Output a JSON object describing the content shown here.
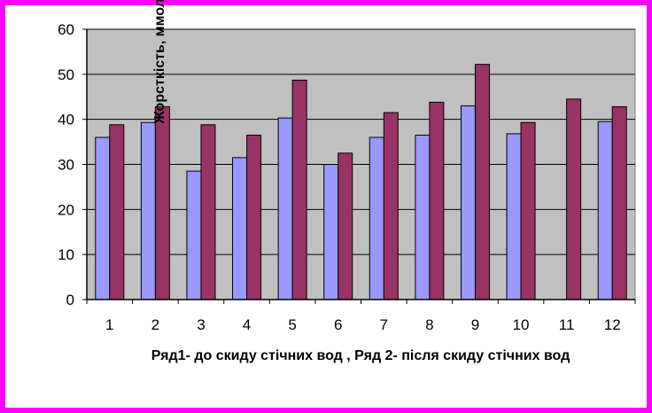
{
  "chart_data": {
    "type": "bar",
    "categories": [
      "1",
      "2",
      "3",
      "4",
      "5",
      "6",
      "7",
      "8",
      "9",
      "10",
      "11",
      "12"
    ],
    "series": [
      {
        "values": [
          36,
          39.3,
          28.5,
          31.5,
          40.3,
          30,
          36,
          36.5,
          43,
          36.8,
          0,
          39.5
        ],
        "color": "#9999ff"
      },
      {
        "values": [
          38.8,
          42.8,
          38.8,
          36.5,
          48.7,
          32.5,
          41.5,
          43.8,
          52.2,
          39.3,
          44.5,
          42.8
        ],
        "color": "#993366"
      }
    ],
    "ylim": [
      0,
      60
    ],
    "yticks": [
      0,
      10,
      20,
      30,
      40,
      50,
      60
    ],
    "xlabel": "Ряд1- до скиду стічних вод , Ряд 2- після скиду стічних вод",
    "ylabel": "Жорсткість, ммоль/дм куб.",
    "grid": true,
    "plot_background": "#c0c0c0",
    "border_color": "#ff00ff"
  }
}
